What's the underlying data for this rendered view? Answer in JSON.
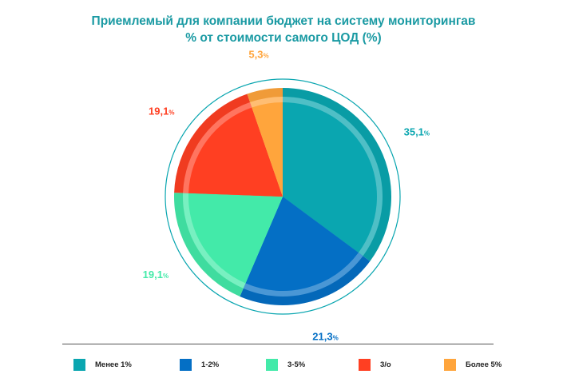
{
  "title": {
    "line1": "Приемлемый для компании бюджет на систему мониторингав",
    "line2": "% от стоимости самого ЦОД (%)"
  },
  "chart_data": {
    "type": "pie",
    "categories": [
      "Менее 1%",
      "1-2%",
      "3-5%",
      "3/о",
      "Более 5%"
    ],
    "values": [
      35.1,
      21.3,
      19.1,
      19.1,
      5.3
    ],
    "data_labels": [
      "35,1",
      "21,3",
      "19,1",
      "19,1",
      "5,3"
    ],
    "unit": "%",
    "colors": [
      "#0aa6b0",
      "#046fc5",
      "#43eaa9",
      "#ff3f22",
      "#ffa53c"
    ],
    "legend_position": "bottom"
  },
  "accent_color": "#1a9aa3"
}
